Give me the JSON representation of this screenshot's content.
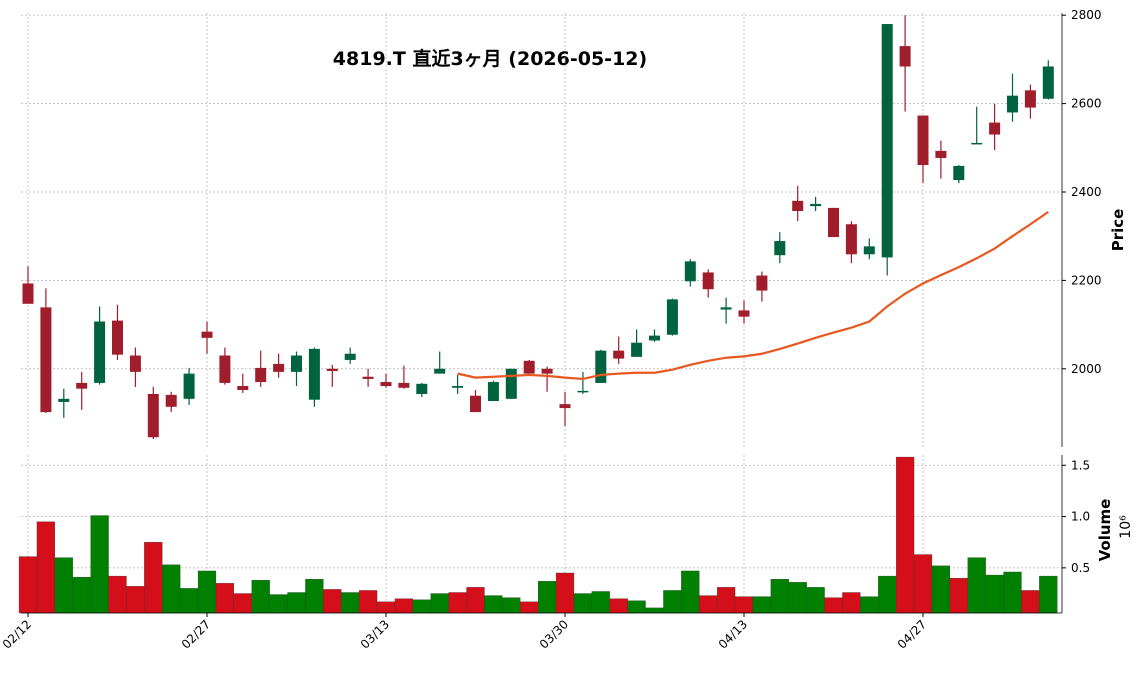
{
  "chart_data": {
    "type": "candlestick",
    "title": "4819.T  直近3ヶ月  (2026-05-12)",
    "categories": [
      "02/12",
      null,
      null,
      null,
      null,
      null,
      null,
      null,
      null,
      null,
      "02/27",
      null,
      null,
      null,
      null,
      null,
      null,
      null,
      null,
      null,
      "03/13",
      null,
      null,
      null,
      null,
      null,
      null,
      null,
      null,
      null,
      "03/30",
      null,
      null,
      null,
      null,
      null,
      null,
      null,
      null,
      null,
      "04/13",
      null,
      null,
      null,
      null,
      null,
      null,
      null,
      null,
      null,
      "04/27",
      null,
      null,
      null,
      null,
      null,
      null,
      null
    ],
    "open": [
      2193,
      2139,
      1925,
      1968,
      1968,
      2109,
      2030,
      1943,
      1941,
      1932,
      2084,
      2030,
      1961,
      2002,
      2011,
      1993,
      1930,
      2000,
      2020,
      1982,
      1970,
      1968,
      1943,
      1989,
      1957,
      1939,
      1927,
      1932,
      2018,
      2000,
      1920,
      1948,
      1968,
      2041,
      2027,
      2064,
      2077,
      2198,
      2218,
      2134,
      2132,
      2211,
      2257,
      2380,
      2368,
      2364,
      2327,
      2259,
      2252,
      2730,
      2573,
      2493,
      2427,
      2509,
      2557,
      2580,
      2630,
      2611
    ],
    "high": [
      2232,
      2182,
      1955,
      1993,
      2141,
      2145,
      2048,
      1959,
      1948,
      2002,
      2107,
      2048,
      1989,
      2041,
      2034,
      2039,
      2048,
      2009,
      2048,
      2000,
      1989,
      2007,
      1968,
      2039,
      1986,
      1952,
      1973,
      2000,
      2020,
      2005,
      1948,
      1993,
      2043,
      2073,
      2089,
      2089,
      2159,
      2248,
      2225,
      2161,
      2155,
      2220,
      2309,
      2414,
      2389,
      2364,
      2334,
      2295,
      2780,
      2800,
      2573,
      2516,
      2461,
      2593,
      2600,
      2668,
      2643,
      2698
    ],
    "low": [
      2148,
      1900,
      1889,
      1907,
      1964,
      2020,
      1959,
      1841,
      1902,
      1918,
      2034,
      1964,
      1945,
      1959,
      1980,
      1961,
      1914,
      1959,
      2011,
      1959,
      1957,
      1955,
      1936,
      1989,
      1943,
      1902,
      1927,
      1932,
      1989,
      1948,
      1870,
      1943,
      1968,
      2011,
      2027,
      2061,
      2075,
      2186,
      2161,
      2102,
      2102,
      2152,
      2239,
      2334,
      2357,
      2298,
      2239,
      2248,
      2211,
      2582,
      2420,
      2430,
      2420,
      2509,
      2495,
      2559,
      2566,
      2609
    ],
    "close": [
      2147,
      1902,
      1932,
      1955,
      2107,
      2032,
      1993,
      1845,
      1914,
      1989,
      2070,
      1968,
      1952,
      1970,
      1993,
      2030,
      2045,
      1995,
      2034,
      1977,
      1961,
      1957,
      1966,
      2000,
      1961,
      1902,
      1970,
      2000,
      1989,
      1989,
      1911,
      1950,
      2041,
      2023,
      2059,
      2075,
      2157,
      2243,
      2180,
      2139,
      2118,
      2177,
      2289,
      2357,
      2373,
      2298,
      2259,
      2277,
      2780,
      2684,
      2461,
      2477,
      2459,
      2511,
      2530,
      2618,
      2591,
      2684
    ],
    "up_color": "#006340",
    "down_color": "#a01d2b",
    "ylim": [
      1823,
      2805
    ],
    "yticks": [
      2000,
      2200,
      2400,
      2600,
      2800
    ],
    "y_label": "Price",
    "grid": true,
    "moving_average": {
      "color": "#e8571f",
      "values": [
        null,
        null,
        null,
        null,
        null,
        null,
        null,
        null,
        null,
        null,
        null,
        null,
        null,
        null,
        null,
        null,
        null,
        null,
        null,
        null,
        null,
        null,
        null,
        null,
        1989,
        1980,
        1982,
        1984,
        1986,
        1984,
        1980,
        1977,
        1986,
        1989,
        1991,
        1991,
        1998,
        2009,
        2018,
        2025,
        2028,
        2034,
        2045,
        2057,
        2070,
        2082,
        2093,
        2107,
        2141,
        2170,
        2193,
        2212,
        2230,
        2250,
        2272,
        2300,
        2327,
        2355
      ]
    },
    "volume": {
      "values": [
        0.61,
        0.95,
        0.6,
        0.41,
        1.01,
        0.42,
        0.32,
        0.75,
        0.53,
        0.3,
        0.47,
        0.35,
        0.25,
        0.38,
        0.24,
        0.26,
        0.39,
        0.29,
        0.26,
        0.28,
        0.17,
        0.2,
        0.19,
        0.25,
        0.26,
        0.31,
        0.23,
        0.21,
        0.17,
        0.37,
        0.45,
        0.25,
        0.27,
        0.2,
        0.18,
        0.11,
        0.28,
        0.47,
        0.23,
        0.31,
        0.22,
        0.22,
        0.39,
        0.36,
        0.31,
        0.21,
        0.26,
        0.22,
        0.42,
        1.58,
        0.63,
        0.52,
        0.4,
        0.6,
        0.43,
        0.46,
        0.28,
        0.42
      ],
      "ylim": [
        0.06,
        1.6
      ],
      "yticks": [
        0.5,
        {
          "value": 1,
          "label": "1.0"
        },
        1.5
      ],
      "y_label": "Volume",
      "scale_label": "10⁶",
      "up_color": "#008000",
      "down_color": "#d50f1a"
    }
  }
}
